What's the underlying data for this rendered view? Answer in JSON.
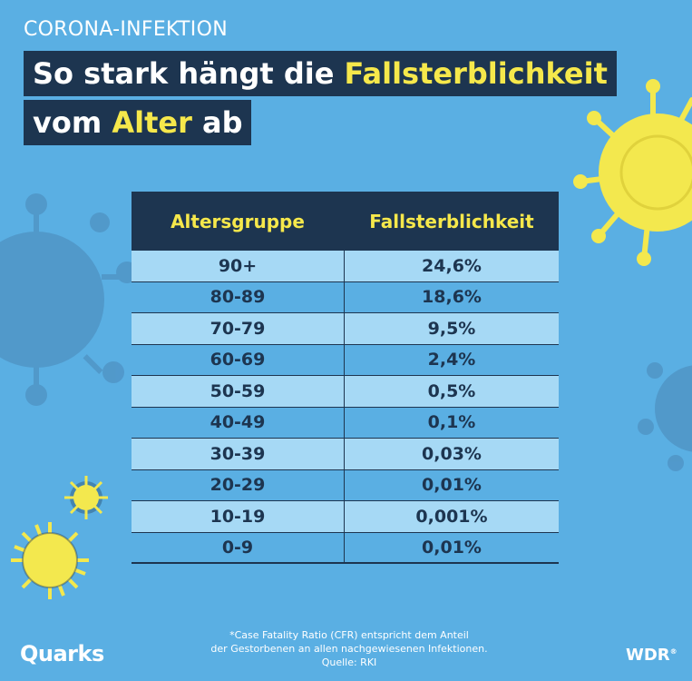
{
  "kicker": "CORONA-INFEKTION",
  "headline": {
    "line1_prefix": "So stark hängt die ",
    "line1_highlight": "Fallsterblichkeit",
    "line2_prefix": "vom ",
    "line2_highlight": "Alter",
    "line2_suffix": " ab"
  },
  "chart_data": {
    "type": "table",
    "title": "So stark hängt die Fallsterblichkeit vom Alter ab",
    "columns": [
      "Altersgruppe",
      "Fallsterblichkeit"
    ],
    "rows": [
      [
        "90+",
        "24,6%"
      ],
      [
        "80-89",
        "18,6%"
      ],
      [
        "70-79",
        "9,5%"
      ],
      [
        "60-69",
        "2,4%"
      ],
      [
        "50-59",
        "0,5%"
      ],
      [
        "40-49",
        "0,1%"
      ],
      [
        "30-39",
        "0,03%"
      ],
      [
        "20-29",
        "0,01%"
      ],
      [
        "10-19",
        "0,001%"
      ],
      [
        "0-9",
        "0,01%"
      ]
    ]
  },
  "footnote": {
    "line1": "*Case Fatality Ratio (CFR) entspricht dem Anteil",
    "line2": "der Gestorbenen an allen nachgewiesenen Infektionen.",
    "line3": "Quelle: RKI"
  },
  "brands": {
    "left": "Quarks",
    "right": "WDR",
    "right_mark": "®"
  },
  "colors": {
    "background": "#5aafe3",
    "navy": "#1d3550",
    "highlight": "#f6e84b",
    "row_light": "#a6d9f5",
    "virus_yellow": "#f3e84e",
    "virus_shadow": "#4f94c5"
  }
}
